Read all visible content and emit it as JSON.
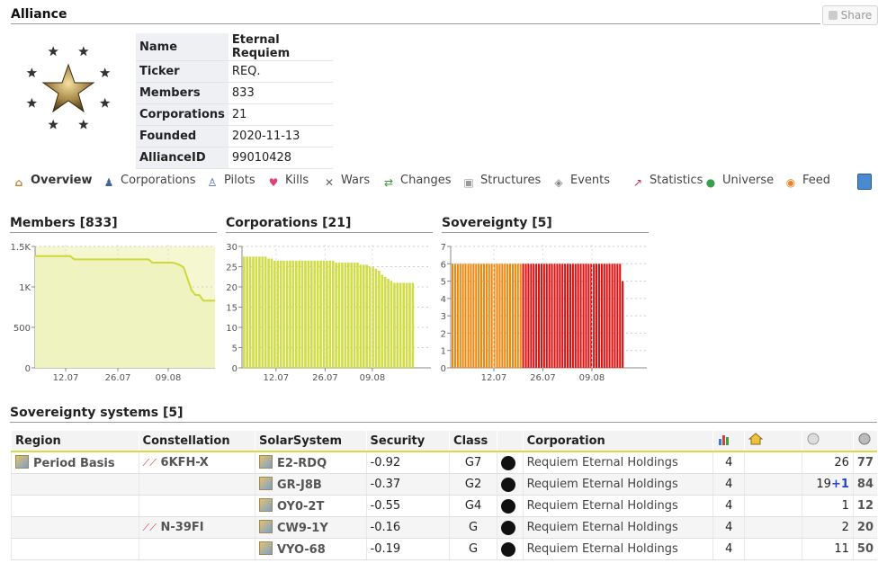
{
  "header": {
    "title": "Alliance",
    "share_label": "Share"
  },
  "info": [
    {
      "k": "Name",
      "v": "Eternal Requiem"
    },
    {
      "k": "Ticker",
      "v": "REQ."
    },
    {
      "k": "Members",
      "v": "833"
    },
    {
      "k": "Corporations",
      "v": "21"
    },
    {
      "k": "Founded",
      "v": "2020-11-13"
    },
    {
      "k": "AllianceID",
      "v": "99010428"
    }
  ],
  "tabs": [
    {
      "label": "Overview",
      "icon": "house-icon"
    },
    {
      "label": "Corporations",
      "icon": "corporations-icon"
    },
    {
      "label": "Pilots",
      "icon": "pilot-icon"
    },
    {
      "label": "Kills",
      "icon": "heart-icon"
    },
    {
      "label": "Wars",
      "icon": "crossed-swords-icon"
    },
    {
      "label": "Changes",
      "icon": "arrows-icon"
    },
    {
      "label": "Structures",
      "icon": "cube-icon"
    },
    {
      "label": "Events",
      "icon": "tag-icon"
    },
    {
      "label": "Statistics",
      "icon": "chart-icon"
    },
    {
      "label": "Universe",
      "icon": "globe-icon"
    },
    {
      "label": "Feed",
      "icon": "rss-icon"
    }
  ],
  "charts": {
    "members_title": "Members [833]",
    "corps_title": "Corporations [21]",
    "sov_title": "Sovereignty [5]"
  },
  "chart_data": [
    {
      "type": "area",
      "title": "Members [833]",
      "y_ticks": [
        "0",
        "500",
        "1K",
        "1.5K"
      ],
      "x_ticks": [
        "12.07",
        "26.07",
        "09.08"
      ],
      "ylim": [
        0,
        1500
      ],
      "values": [
        1380,
        1380,
        1380,
        1380,
        1380,
        1380,
        1380,
        1380,
        1380,
        1380,
        1340,
        1340,
        1340,
        1340,
        1340,
        1340,
        1340,
        1340,
        1340,
        1340,
        1340,
        1340,
        1340,
        1340,
        1340,
        1340,
        1340,
        1340,
        1340,
        1340,
        1300,
        1300,
        1300,
        1300,
        1300,
        1300,
        1290,
        1270,
        1240,
        1100,
        960,
        900,
        900,
        830,
        830,
        830,
        830
      ]
    },
    {
      "type": "bar",
      "title": "Corporations [21]",
      "y_ticks": [
        "0",
        "5",
        "10",
        "15",
        "20",
        "25",
        "30"
      ],
      "x_ticks": [
        "12.07",
        "26.07",
        "09.08"
      ],
      "ylim": [
        0,
        30
      ],
      "values": [
        27.5,
        27.5,
        27.5,
        27.5,
        27.5,
        27.5,
        27.5,
        27.5,
        27,
        27,
        26.5,
        26.5,
        26.5,
        26.5,
        26.5,
        26.5,
        26.5,
        26.5,
        26.5,
        26.5,
        26.5,
        26.5,
        26.5,
        26.5,
        26.5,
        26.5,
        26.5,
        26.5,
        26.5,
        26.5,
        26,
        26,
        26,
        26,
        26,
        26,
        26,
        26,
        25.5,
        25.5,
        25.5,
        25,
        25,
        24.5,
        24,
        23,
        22.5,
        22,
        21.5,
        21,
        21,
        21,
        21,
        21,
        21,
        21
      ]
    },
    {
      "type": "bar",
      "title": "Sovereignty [5]",
      "y_ticks": [
        "0",
        "1",
        "2",
        "3",
        "4",
        "5",
        "6",
        "7"
      ],
      "x_ticks": [
        "12.07",
        "26.07",
        "09.08"
      ],
      "ylim": [
        0,
        7
      ],
      "series": [
        {
          "color": "#ee8811",
          "values": [
            6,
            6,
            6,
            6,
            6,
            6,
            6,
            6,
            6,
            6,
            6,
            6,
            6,
            6,
            6,
            6,
            6,
            6,
            6,
            6,
            6,
            6,
            6,
            6,
            6,
            6,
            6
          ]
        },
        {
          "color": "#dd1111",
          "values": [
            6,
            6,
            6,
            6,
            6,
            6,
            6,
            6,
            6,
            6,
            6,
            6,
            6,
            6,
            6,
            6,
            6,
            6,
            6,
            6,
            6,
            6,
            6,
            6,
            6,
            6,
            6,
            6,
            6,
            6,
            6,
            6,
            6,
            6,
            6,
            6,
            6,
            6,
            5
          ]
        }
      ]
    }
  ],
  "sov": {
    "title": "Sovereignty systems [5]",
    "headers": [
      "Region",
      "Constellation",
      "SolarSystem",
      "Security",
      "Class",
      "",
      "Corporation",
      "",
      "",
      "",
      ""
    ],
    "rows": [
      {
        "region": "Period Basis",
        "constellation": "6KFH-X",
        "system": "E2-RDQ",
        "security": "-0.92",
        "class": "G7",
        "corp": "Requiem Eternal Holdings",
        "c1": "4",
        "c3": "26",
        "c3b": "",
        "c4": "77"
      },
      {
        "region": "",
        "constellation": "",
        "system": "GR-J8B",
        "security": "-0.37",
        "class": "G2",
        "corp": "Requiem Eternal Holdings",
        "c1": "4",
        "c3": "19",
        "c3b": "+1",
        "c4": "84"
      },
      {
        "region": "",
        "constellation": "",
        "system": "OY0-2T",
        "security": "-0.55",
        "class": "G4",
        "corp": "Requiem Eternal Holdings",
        "c1": "4",
        "c3": "1",
        "c3b": "",
        "c4": "12"
      },
      {
        "region": "",
        "constellation": "N-39FI",
        "system": "CW9-1Y",
        "security": "-0.16",
        "class": "G",
        "corp": "Requiem Eternal Holdings",
        "c1": "4",
        "c3": "2",
        "c3b": "",
        "c4": "20"
      },
      {
        "region": "",
        "constellation": "",
        "system": "VYO-68",
        "security": "-0.19",
        "class": "G",
        "corp": "Requiem Eternal Holdings",
        "c1": "4",
        "c3": "11",
        "c3b": "",
        "c4": "50"
      }
    ]
  }
}
